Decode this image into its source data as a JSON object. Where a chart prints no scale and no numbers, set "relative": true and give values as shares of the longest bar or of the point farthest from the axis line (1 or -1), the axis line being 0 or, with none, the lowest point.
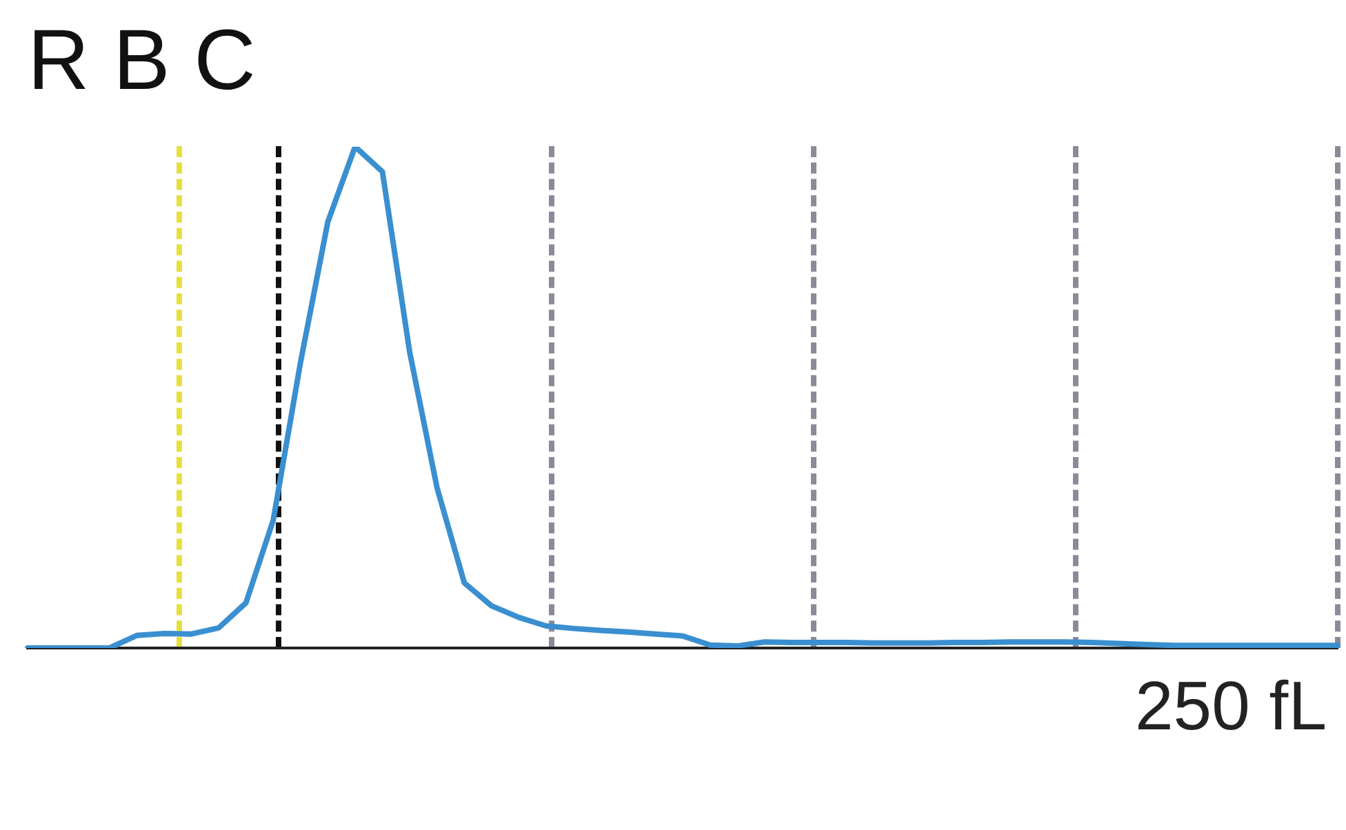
{
  "chart_data": {
    "type": "line",
    "title": "R B C",
    "relative": true,
    "color": "#3a8fd0",
    "line_style": "solid",
    "marker": "none",
    "legend": false,
    "categories": [
      null,
      null,
      null,
      null,
      null,
      null,
      null,
      null,
      null,
      null,
      null,
      null,
      null,
      null,
      null,
      null,
      null,
      null,
      null,
      null,
      null,
      null,
      null,
      null,
      null,
      null,
      null,
      null,
      null,
      null,
      null,
      null,
      null,
      null,
      null,
      null,
      null,
      null,
      null,
      null,
      null,
      null,
      null,
      null,
      null,
      null,
      null,
      null,
      null
    ],
    "values": [
      0,
      0,
      0,
      0,
      0.025,
      0.029,
      0.028,
      0.04,
      0.09,
      0.255,
      0.57,
      0.85,
      1,
      0.95,
      0.59,
      0.32,
      0.13,
      0.084,
      0.061,
      0.044,
      0.039,
      0.035,
      0.032,
      0.028,
      0.024,
      0.006,
      0.004,
      0.012,
      0.011,
      0.011,
      0.011,
      0.01,
      0.01,
      0.01,
      0.011,
      0.011,
      0.012,
      0.012,
      0.012,
      0.011,
      0.009,
      0.007,
      0.005,
      0.005,
      0.005,
      0.005,
      0.005,
      0.005,
      0.005
    ],
    "annotations": [
      "250 fL"
    ]
  }
}
